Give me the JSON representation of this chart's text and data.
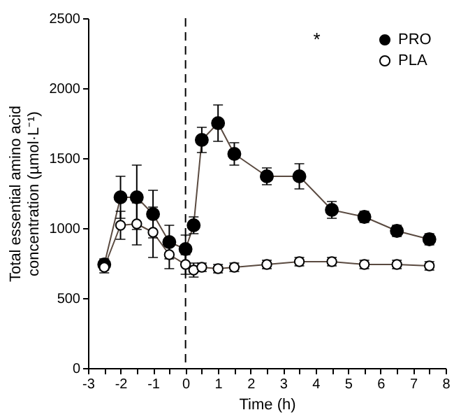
{
  "chart_data": {
    "type": "line",
    "xlabel": "Time (h)",
    "ylabel": "Total essential amino acid concentration (µmol·L⁻¹)",
    "x": [
      -2.5,
      -2,
      -1.5,
      -1,
      -0.5,
      0,
      0.25,
      0.5,
      1,
      1.5,
      2.5,
      3.5,
      4.5,
      5.5,
      6.5,
      7.5
    ],
    "series": [
      {
        "name": "PRO",
        "color": "#000000",
        "values": [
          740,
          1220,
          1220,
          1100,
          900,
          850,
          1020,
          1630,
          1750,
          1530,
          1370,
          1370,
          1130,
          1080,
          980,
          920
        ],
        "errors": [
          40,
          150,
          230,
          170,
          120,
          100,
          60,
          90,
          130,
          80,
          60,
          90,
          60,
          40,
          40,
          40
        ]
      },
      {
        "name": "PLA",
        "color": "#ffffff",
        "values": [
          720,
          1020,
          1030,
          970,
          810,
          740,
          700,
          720,
          710,
          720,
          740,
          760,
          760,
          740,
          740,
          730
        ],
        "errors": [
          40,
          100,
          150,
          180,
          100,
          70,
          50,
          30,
          30,
          30,
          30,
          30,
          30,
          30,
          30,
          30
        ]
      }
    ],
    "xlim": [
      -3,
      8
    ],
    "xticks": [
      -3,
      {
        "value": -2.5,
        "label": null
      },
      -2,
      {
        "value": -1.5,
        "label": null
      },
      -1,
      {
        "value": -0.5,
        "label": null
      },
      0,
      {
        "value": 0.5,
        "label": null
      },
      1,
      {
        "value": 1.5,
        "label": null
      },
      2,
      {
        "value": 2.5,
        "label": null
      },
      3,
      {
        "value": 3.5,
        "label": null
      },
      4,
      {
        "value": 4.5,
        "label": null
      },
      5,
      {
        "value": 5.5,
        "label": null
      },
      6,
      {
        "value": 6.5,
        "label": null
      },
      7,
      {
        "value": 7.5,
        "label": null
      },
      8
    ],
    "ylim": [
      0,
      2500
    ],
    "yticks": [
      0,
      500,
      1000,
      1500,
      2000,
      2500
    ],
    "ref_lines": [
      {
        "axis": "x",
        "value": 0,
        "line_style": "dashed"
      }
    ],
    "annotations": [
      "*"
    ],
    "grid": false,
    "legend": "top right",
    "marker": "circle",
    "line_style": "solid"
  }
}
